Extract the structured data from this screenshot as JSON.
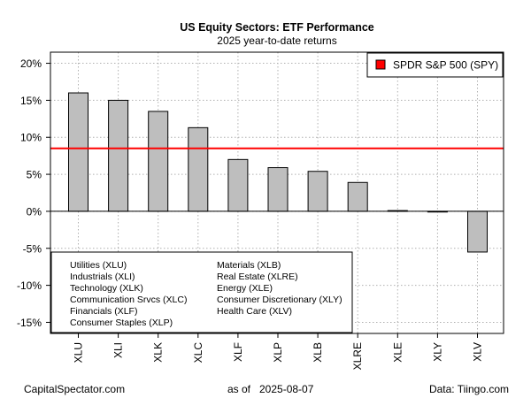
{
  "chart_data": {
    "type": "bar",
    "title": "US Equity Sectors: ETF Performance",
    "subtitle": "2025 year-to-date returns",
    "categories": [
      "XLU",
      "XLI",
      "XLK",
      "XLC",
      "XLF",
      "XLP",
      "XLB",
      "XLRE",
      "XLE",
      "XLY",
      "XLV"
    ],
    "values": [
      16.0,
      15.0,
      13.5,
      11.3,
      7.0,
      5.9,
      5.4,
      3.9,
      0.1,
      -0.05,
      -5.5
    ],
    "ylim": [
      -16.5,
      21.5
    ],
    "yticks": [
      20,
      15,
      10,
      5,
      0,
      -5,
      -10,
      -15
    ],
    "ytick_labels": [
      "20%",
      "15%",
      "10%",
      "5%",
      "0%",
      "-5%",
      "-10%",
      "-15%"
    ],
    "grid": true,
    "bar_color": "#bebebe",
    "reference_line": {
      "label": "SPDR S&P 500 (SPY)",
      "value": 8.5,
      "color": "#ff0000"
    },
    "legend_position": "top-right",
    "sector_key": {
      "left": [
        "Utilities (XLU)",
        "Industrials (XLI)",
        "Technology (XLK)",
        "Communication Srvcs (XLC)",
        "Financials (XLF)",
        "Consumer Staples (XLP)"
      ],
      "right": [
        "Materials (XLB)",
        "Real Estate (XLRE)",
        "Energy (XLE)",
        "Consumer Discretionary (XLY)",
        "Health Care (XLV)"
      ]
    }
  },
  "footer": {
    "source_left": "CapitalSpectator.com",
    "as_of_label": "as of",
    "as_of_date": "2025-08-07",
    "source_right": "Data: Tiingo.com"
  }
}
